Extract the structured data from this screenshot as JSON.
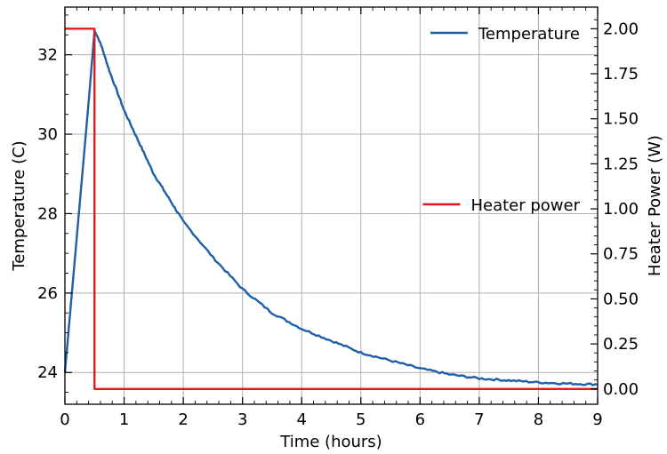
{
  "chart_data": {
    "type": "line",
    "xlabel": "Time (hours)",
    "ylabel": "Temperature (C)",
    "y2label": "Heater Power (W)",
    "xlim": [
      0,
      9
    ],
    "ylim": [
      23.2,
      33.2
    ],
    "y2lim": [
      -0.085,
      2.12
    ],
    "xticks": [
      0,
      1,
      2,
      3,
      4,
      5,
      6,
      7,
      8,
      9
    ],
    "xticklabels": [
      "0",
      "1",
      "2",
      "3",
      "4",
      "5",
      "6",
      "7",
      "8",
      "9"
    ],
    "yticks": [
      24,
      26,
      28,
      30,
      32
    ],
    "yticklabels": [
      "24",
      "26",
      "28",
      "30",
      "32"
    ],
    "y2ticks": [
      0,
      0.25,
      0.5,
      0.75,
      1.0,
      1.25,
      1.5,
      1.75,
      2.0
    ],
    "y2ticklabels": [
      "0.00",
      "0.25",
      "0.50",
      "0.75",
      "1.00",
      "1.25",
      "1.50",
      "1.75",
      "2.00"
    ],
    "grid": true,
    "series": [
      {
        "name": "Temperature",
        "axis": "left",
        "color": "#1f5fa8",
        "x": [
          0,
          0.1,
          0.2,
          0.3,
          0.4,
          0.5,
          0.6,
          0.75,
          1.0,
          1.25,
          1.5,
          1.75,
          2.0,
          2.5,
          3.0,
          3.5,
          4.0,
          4.5,
          5.0,
          5.5,
          6.0,
          6.5,
          7.0,
          7.5,
          8.0,
          8.5,
          9.0
        ],
        "values": [
          24.0,
          25.7,
          27.4,
          29.1,
          30.8,
          32.6,
          32.3,
          31.6,
          30.6,
          29.8,
          29.0,
          28.4,
          27.8,
          26.9,
          26.1,
          25.5,
          25.1,
          24.8,
          24.5,
          24.3,
          24.1,
          23.95,
          23.85,
          23.8,
          23.75,
          23.72,
          23.7
        ]
      },
      {
        "name": "Heater power",
        "axis": "right",
        "color": "#e31a1c",
        "x": [
          0,
          0.5,
          0.5,
          9.0
        ],
        "values": [
          2.0,
          2.0,
          0.0,
          0.0
        ]
      }
    ],
    "legend": [
      {
        "label": "Temperature",
        "color": "#1f5fa8",
        "placement": "top-right"
      },
      {
        "label": "Heater power",
        "color": "#e31a1c",
        "placement": "center-right"
      }
    ]
  }
}
